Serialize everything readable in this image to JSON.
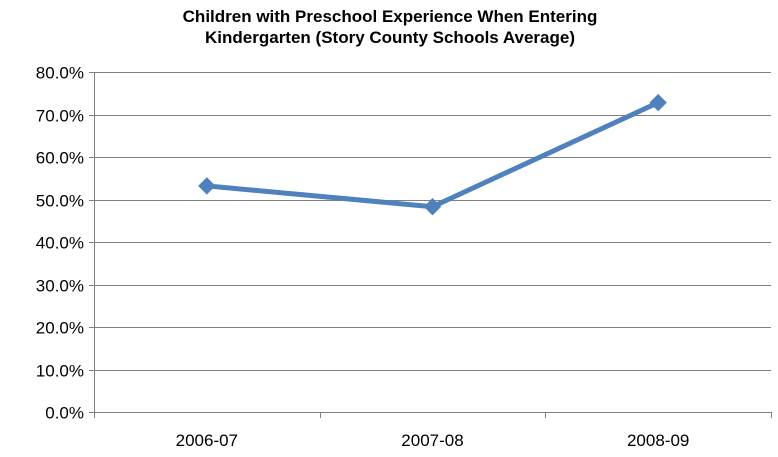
{
  "chart_data": {
    "type": "line",
    "title_lines": [
      "Children with Preschool Experience When Entering",
      "Kindergarten (Story County Schools Average)"
    ],
    "xlabel": "",
    "ylabel": "",
    "categories": [
      "2006-07",
      "2007-08",
      "2008-09"
    ],
    "series": [
      {
        "values": [
          53.2,
          48.3,
          72.8
        ],
        "color": "#4f81bd"
      }
    ],
    "ylim": [
      0,
      80
    ],
    "y_tick_step": 10,
    "y_tick_labels": [
      "0.0%",
      "10.0%",
      "20.0%",
      "30.0%",
      "40.0%",
      "50.0%",
      "60.0%",
      "70.0%",
      "80.0%"
    ],
    "grid": true,
    "grid_color": "#808080",
    "legend": "none",
    "marker": "diamond"
  }
}
